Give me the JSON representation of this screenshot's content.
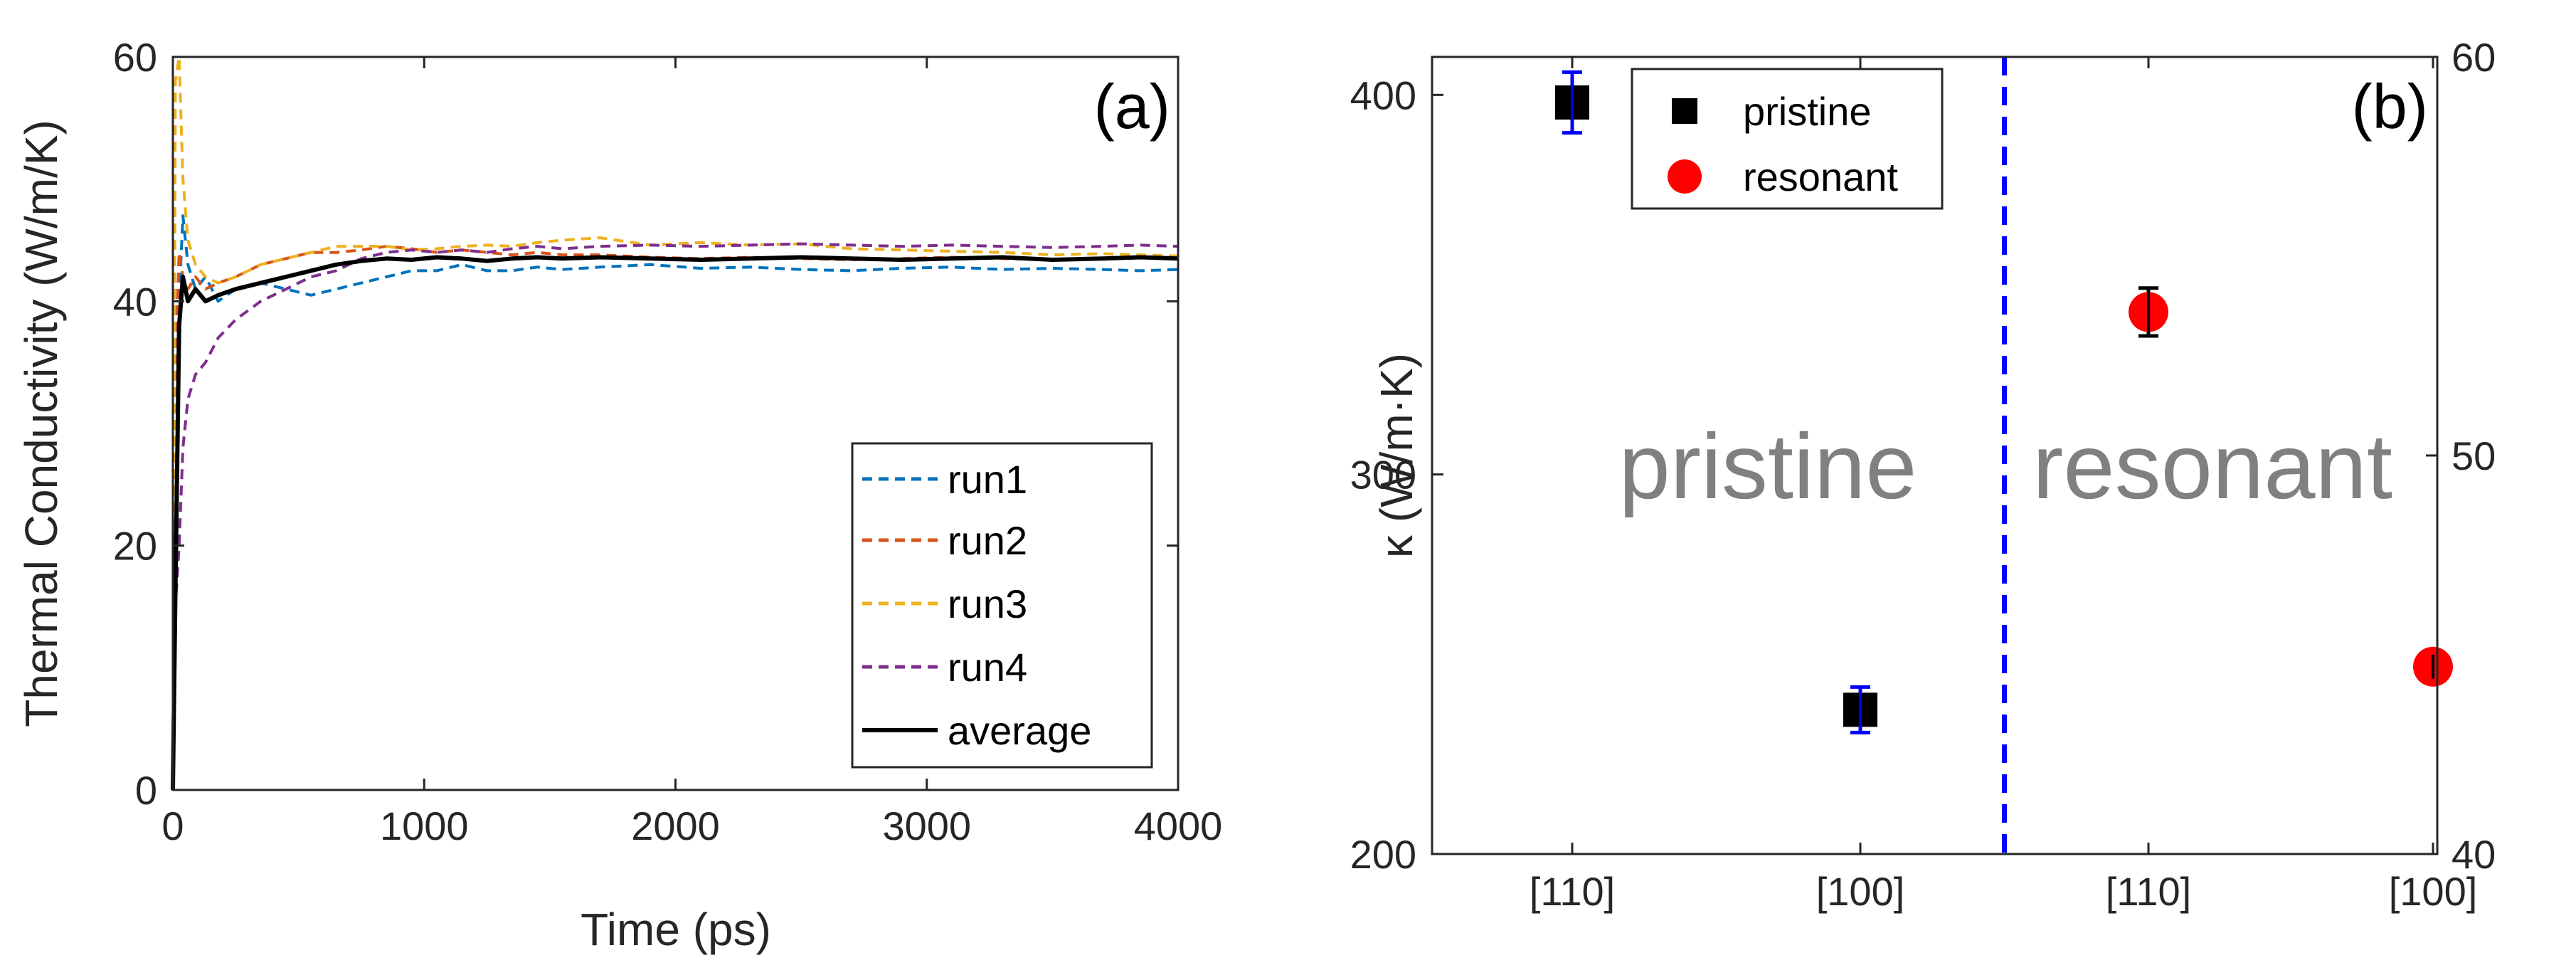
{
  "chart_data": [
    {
      "type": "line",
      "panel_label": "(a)",
      "xlabel": "Time (ps)",
      "ylabel": "Thermal Conductivity (W/m/K)",
      "xlim": [
        0,
        4000
      ],
      "ylim": [
        0,
        60
      ],
      "xticks": [
        "0",
        "1000",
        "2000",
        "3000",
        "4000"
      ],
      "yticks": [
        "0",
        "20",
        "40",
        "60"
      ],
      "legend_position": "bottom-right",
      "series": [
        {
          "name": "run1",
          "style": "dashed",
          "color": "#0072BD",
          "x": [
            0,
            10,
            25,
            40,
            60,
            90,
            130,
            180,
            250,
            350,
            450,
            550,
            650,
            750,
            850,
            950,
            1050,
            1150,
            1250,
            1350,
            1450,
            1550,
            1700,
            1900,
            2100,
            2300,
            2500,
            2700,
            2900,
            3100,
            3300,
            3500,
            3700,
            3850,
            4000
          ],
          "y": [
            0,
            30,
            40,
            47,
            43,
            41,
            42,
            40,
            41,
            41.5,
            41,
            40.5,
            41,
            41.5,
            42,
            42.5,
            42.5,
            43,
            42.5,
            42.5,
            42.8,
            42.6,
            42.8,
            43,
            42.7,
            42.8,
            42.6,
            42.5,
            42.7,
            42.8,
            42.6,
            42.7,
            42.6,
            42.5,
            42.6
          ]
        },
        {
          "name": "run2",
          "style": "dashed",
          "color": "#D95319",
          "x": [
            0,
            10,
            25,
            40,
            60,
            90,
            130,
            180,
            250,
            350,
            450,
            550,
            650,
            750,
            850,
            950,
            1050,
            1150,
            1250,
            1350,
            1450,
            1550,
            1700,
            1900,
            2100,
            2300,
            2500,
            2700,
            2900,
            3100,
            3300,
            3500,
            3700,
            3850,
            4000
          ],
          "y": [
            0,
            35,
            44,
            42,
            41,
            42,
            41,
            41.5,
            42,
            43,
            43.5,
            44,
            44,
            44.2,
            44.5,
            44.3,
            44,
            44.2,
            44,
            43.8,
            44,
            43.8,
            43.8,
            43.6,
            43.5,
            43.6,
            43.5,
            43.4,
            43.5,
            43.6,
            43.5,
            43.4,
            43.5,
            43.6,
            43.5
          ]
        },
        {
          "name": "run3",
          "style": "dashed",
          "color": "#EDB120",
          "x": [
            0,
            10,
            25,
            40,
            60,
            90,
            130,
            180,
            250,
            350,
            450,
            550,
            650,
            750,
            850,
            950,
            1050,
            1150,
            1250,
            1350,
            1450,
            1550,
            1700,
            1900,
            2100,
            2300,
            2500,
            2700,
            2900,
            3100,
            3300,
            3500,
            3700,
            3850,
            4000
          ],
          "y": [
            0,
            58,
            60,
            50,
            45,
            43,
            42,
            41.5,
            42,
            43,
            43.5,
            44,
            44.5,
            44.5,
            44.5,
            44.2,
            44.3,
            44.5,
            44.6,
            44.5,
            44.8,
            45,
            45.2,
            44.6,
            44.8,
            44.6,
            44.7,
            44.3,
            44.2,
            44.1,
            44,
            43.8,
            43.9,
            43.8,
            43.7
          ]
        },
        {
          "name": "run4",
          "style": "dashed",
          "color": "#7E2F8E",
          "x": [
            0,
            10,
            25,
            40,
            60,
            90,
            130,
            180,
            250,
            350,
            450,
            550,
            650,
            750,
            850,
            950,
            1050,
            1150,
            1250,
            1350,
            1450,
            1550,
            1700,
            1900,
            2100,
            2300,
            2500,
            2700,
            2900,
            3100,
            3300,
            3500,
            3700,
            3850,
            4000
          ],
          "y": [
            0,
            15,
            20,
            28,
            32,
            34,
            35,
            37,
            38.5,
            40,
            41,
            42,
            42.5,
            43.5,
            44,
            44.2,
            44,
            44.2,
            44,
            44.3,
            44.5,
            44.3,
            44.5,
            44.6,
            44.5,
            44.6,
            44.7,
            44.6,
            44.5,
            44.6,
            44.5,
            44.4,
            44.5,
            44.6,
            44.5
          ]
        },
        {
          "name": "average",
          "style": "solid",
          "color": "#000000",
          "x": [
            0,
            10,
            25,
            40,
            60,
            90,
            130,
            180,
            250,
            350,
            450,
            550,
            650,
            750,
            850,
            950,
            1050,
            1150,
            1250,
            1350,
            1450,
            1550,
            1700,
            1900,
            2100,
            2300,
            2500,
            2700,
            2900,
            3100,
            3300,
            3500,
            3700,
            3850,
            4000
          ],
          "y": [
            0,
            16,
            38,
            42,
            40,
            41,
            40,
            40.5,
            41,
            41.5,
            42,
            42.5,
            43,
            43.3,
            43.5,
            43.4,
            43.6,
            43.5,
            43.3,
            43.5,
            43.6,
            43.5,
            43.6,
            43.5,
            43.4,
            43.5,
            43.6,
            43.5,
            43.4,
            43.5,
            43.6,
            43.4,
            43.5,
            43.6,
            43.5
          ]
        }
      ]
    },
    {
      "type": "scatter",
      "panel_label": "(b)",
      "xlabel": "",
      "ylabel": "κ (W/m·K)",
      "categories": [
        "[110]",
        "[100]",
        "[110]",
        "[100]"
      ],
      "ylim": [
        200,
        410
      ],
      "yticks": [
        "200",
        "300",
        "400"
      ],
      "y2lim": [
        40,
        60
      ],
      "y2ticks": [
        "40",
        "50",
        "60"
      ],
      "legend_position": "top-left",
      "region_labels": [
        "pristine",
        "resonant"
      ],
      "divider_color": "#0000FF",
      "series": [
        {
          "name": "pristine",
          "marker": "square",
          "color": "#000000",
          "errorbar_color": "#0000FF",
          "axis": "left",
          "points": [
            {
              "category": 0,
              "y": 398,
              "err": 8
            },
            {
              "category": 1,
              "y": 238,
              "err": 6
            }
          ]
        },
        {
          "name": "resonant",
          "marker": "circle",
          "color": "#FF0000",
          "errorbar_color": "#000000",
          "axis": "right",
          "points": [
            {
              "category": 2,
              "y": 53.6,
              "err": 0.6
            },
            {
              "category": 3,
              "y": 44.7,
              "err": 0.3
            }
          ]
        }
      ]
    }
  ]
}
